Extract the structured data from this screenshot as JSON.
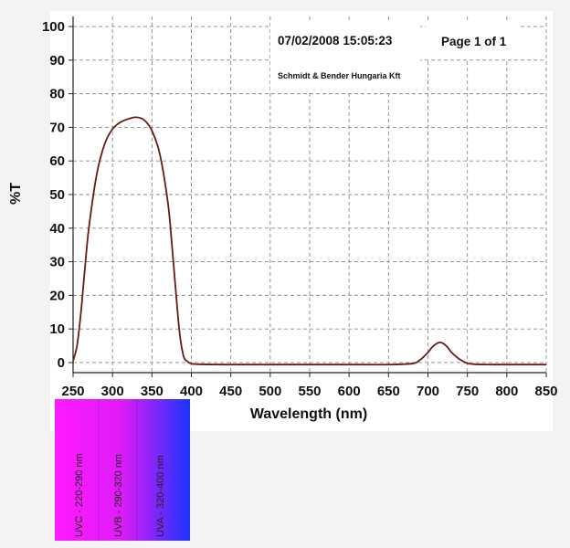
{
  "header": {
    "datetime": "07/02/2008 15:05:23",
    "page": "Page 1 of 1",
    "company": "Schmidt & Bender Hungaria Kft"
  },
  "chart_data": {
    "type": "line",
    "title": "",
    "xlabel": "Wavelength (nm)",
    "ylabel": "%T",
    "xlim": [
      250,
      850
    ],
    "ylim": [
      -3,
      103
    ],
    "x_ticks": [
      "250",
      "300",
      "350",
      "400",
      "450",
      "500",
      "550",
      "600",
      "650",
      "700",
      "750",
      "800",
      "850"
    ],
    "y_ticks": [
      "0",
      "10",
      "20",
      "30",
      "40",
      "50",
      "60",
      "70",
      "80",
      "90",
      "100"
    ],
    "grid": true,
    "series": [
      {
        "color": "#6a1a14",
        "x": [
          250,
          255,
          260,
          265,
          270,
          280,
          290,
          300,
          310,
          320,
          330,
          340,
          350,
          360,
          370,
          375,
          380,
          385,
          390,
          395,
          400,
          410,
          450,
          500,
          550,
          600,
          650,
          680,
          690,
          700,
          705,
          710,
          715,
          720,
          725,
          730,
          740,
          750,
          760,
          780,
          800,
          850
        ],
        "y": [
          0.5,
          5,
          15,
          28,
          40,
          56,
          65,
          69.5,
          71.5,
          72.5,
          73,
          72.2,
          69,
          62,
          48,
          36,
          22,
          9,
          2,
          0.3,
          -0.3,
          -0.5,
          -0.6,
          -0.6,
          -0.6,
          -0.6,
          -0.6,
          -0.3,
          0.8,
          3,
          4.5,
          5.5,
          6,
          5.6,
          4.5,
          3,
          1,
          -0.2,
          -0.5,
          -0.6,
          -0.6,
          -0.6
        ]
      }
    ]
  },
  "uv_bands": [
    {
      "label": "UVC  -  220-290 nm",
      "color": "#ff1aff"
    },
    {
      "label": "UVB  -  290-320 nm",
      "color": "#d81cf2"
    },
    {
      "label": "UVA  -  320-400 nm",
      "color": "#6a22ff"
    }
  ]
}
